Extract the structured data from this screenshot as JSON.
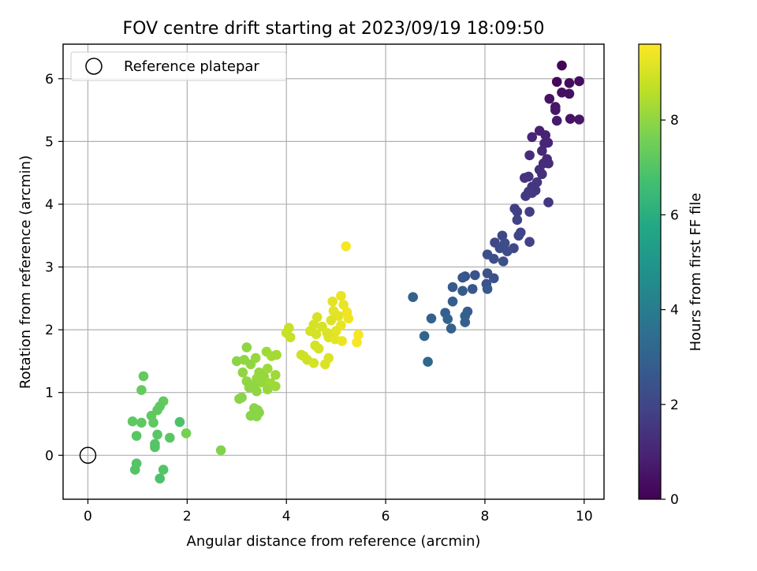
{
  "chart_data": {
    "type": "scatter",
    "title": "FOV centre drift starting at 2023/09/19 18:09:50",
    "xlabel": "Angular distance from reference (arcmin)",
    "ylabel": "Rotation from reference (arcmin)",
    "xlim": [
      -0.5,
      10.4
    ],
    "ylim": [
      -0.7,
      6.55
    ],
    "xticks": [
      0,
      2,
      4,
      6,
      8,
      10
    ],
    "yticks": [
      0,
      1,
      2,
      3,
      4,
      5,
      6
    ],
    "grid": true,
    "legend": {
      "placement": "top-left",
      "entries": [
        "Reference platepar"
      ]
    },
    "reference_point": {
      "x": 0,
      "y": 0
    },
    "colorbar": {
      "label": "Hours from first FF file",
      "colormap": "viridis",
      "range": [
        0,
        9.6
      ],
      "ticks": [
        0,
        2,
        4,
        6,
        8
      ]
    },
    "series": [
      {
        "points": [
          {
            "x": 9.55,
            "y": 6.21,
            "c": 0.1
          },
          {
            "x": 9.45,
            "y": 5.95,
            "c": 0.2
          },
          {
            "x": 9.9,
            "y": 5.96,
            "c": 0.3
          },
          {
            "x": 9.7,
            "y": 5.93,
            "c": 0.3
          },
          {
            "x": 9.55,
            "y": 5.78,
            "c": 0.4
          },
          {
            "x": 9.7,
            "y": 5.76,
            "c": 0.4
          },
          {
            "x": 9.3,
            "y": 5.68,
            "c": 0.5
          },
          {
            "x": 9.42,
            "y": 5.55,
            "c": 0.6
          },
          {
            "x": 9.42,
            "y": 5.5,
            "c": 0.6
          },
          {
            "x": 9.45,
            "y": 5.33,
            "c": 0.7
          },
          {
            "x": 9.72,
            "y": 5.36,
            "c": 0.5
          },
          {
            "x": 9.9,
            "y": 5.35,
            "c": 0.6
          },
          {
            "x": 9.1,
            "y": 5.17,
            "c": 0.9
          },
          {
            "x": 8.95,
            "y": 5.07,
            "c": 1.0
          },
          {
            "x": 9.22,
            "y": 5.1,
            "c": 0.9
          },
          {
            "x": 9.2,
            "y": 4.97,
            "c": 1.0
          },
          {
            "x": 9.27,
            "y": 4.98,
            "c": 1.0
          },
          {
            "x": 9.15,
            "y": 4.85,
            "c": 1.1
          },
          {
            "x": 9.25,
            "y": 4.72,
            "c": 1.1
          },
          {
            "x": 8.9,
            "y": 4.78,
            "c": 1.2
          },
          {
            "x": 9.18,
            "y": 4.65,
            "c": 1.2
          },
          {
            "x": 9.28,
            "y": 4.65,
            "c": 1.2
          },
          {
            "x": 9.1,
            "y": 4.55,
            "c": 1.3
          },
          {
            "x": 9.15,
            "y": 4.48,
            "c": 1.3
          },
          {
            "x": 8.8,
            "y": 4.42,
            "c": 1.4
          },
          {
            "x": 8.88,
            "y": 4.44,
            "c": 1.4
          },
          {
            "x": 9.05,
            "y": 4.35,
            "c": 1.5
          },
          {
            "x": 8.95,
            "y": 4.28,
            "c": 1.5
          },
          {
            "x": 9.02,
            "y": 4.22,
            "c": 1.5
          },
          {
            "x": 8.88,
            "y": 4.2,
            "c": 1.6
          },
          {
            "x": 8.95,
            "y": 4.18,
            "c": 1.6
          },
          {
            "x": 8.82,
            "y": 4.13,
            "c": 1.6
          },
          {
            "x": 9.28,
            "y": 4.03,
            "c": 1.5
          },
          {
            "x": 8.6,
            "y": 3.93,
            "c": 1.8
          },
          {
            "x": 8.65,
            "y": 3.88,
            "c": 1.8
          },
          {
            "x": 8.9,
            "y": 3.88,
            "c": 1.7
          },
          {
            "x": 8.65,
            "y": 3.75,
            "c": 1.9
          },
          {
            "x": 8.72,
            "y": 3.55,
            "c": 2.0
          },
          {
            "x": 8.68,
            "y": 3.5,
            "c": 2.0
          },
          {
            "x": 8.9,
            "y": 3.4,
            "c": 1.9
          },
          {
            "x": 8.2,
            "y": 3.39,
            "c": 2.1
          },
          {
            "x": 8.35,
            "y": 3.5,
            "c": 2.1
          },
          {
            "x": 8.4,
            "y": 3.38,
            "c": 2.2
          },
          {
            "x": 8.3,
            "y": 3.3,
            "c": 2.2
          },
          {
            "x": 8.58,
            "y": 3.3,
            "c": 2.1
          },
          {
            "x": 8.45,
            "y": 3.25,
            "c": 2.2
          },
          {
            "x": 8.05,
            "y": 3.2,
            "c": 2.3
          },
          {
            "x": 8.18,
            "y": 3.13,
            "c": 2.3
          },
          {
            "x": 8.37,
            "y": 3.09,
            "c": 2.3
          },
          {
            "x": 8.05,
            "y": 2.9,
            "c": 2.4
          },
          {
            "x": 7.6,
            "y": 2.85,
            "c": 2.5
          },
          {
            "x": 7.8,
            "y": 2.87,
            "c": 2.5
          },
          {
            "x": 7.55,
            "y": 2.83,
            "c": 2.6
          },
          {
            "x": 8.18,
            "y": 2.82,
            "c": 2.4
          },
          {
            "x": 8.03,
            "y": 2.73,
            "c": 2.5
          },
          {
            "x": 7.35,
            "y": 2.68,
            "c": 2.7
          },
          {
            "x": 7.55,
            "y": 2.62,
            "c": 2.7
          },
          {
            "x": 7.75,
            "y": 2.65,
            "c": 2.6
          },
          {
            "x": 8.05,
            "y": 2.65,
            "c": 2.6
          },
          {
            "x": 6.55,
            "y": 2.52,
            "c": 3.0
          },
          {
            "x": 7.35,
            "y": 2.45,
            "c": 2.8
          },
          {
            "x": 7.65,
            "y": 2.29,
            "c": 2.8
          },
          {
            "x": 7.2,
            "y": 2.27,
            "c": 2.9
          },
          {
            "x": 7.6,
            "y": 2.22,
            "c": 2.9
          },
          {
            "x": 6.92,
            "y": 2.18,
            "c": 3.0
          },
          {
            "x": 7.25,
            "y": 2.17,
            "c": 3.0
          },
          {
            "x": 7.6,
            "y": 2.12,
            "c": 3.0
          },
          {
            "x": 7.32,
            "y": 2.02,
            "c": 3.0
          },
          {
            "x": 6.78,
            "y": 1.9,
            "c": 3.1
          },
          {
            "x": 6.85,
            "y": 1.49,
            "c": 3.2
          },
          {
            "x": 5.2,
            "y": 3.33,
            "c": 9.5
          },
          {
            "x": 5.1,
            "y": 2.54,
            "c": 9.3
          },
          {
            "x": 4.93,
            "y": 2.45,
            "c": 9.2
          },
          {
            "x": 5.15,
            "y": 2.4,
            "c": 9.3
          },
          {
            "x": 4.95,
            "y": 2.3,
            "c": 9.2
          },
          {
            "x": 5.22,
            "y": 2.28,
            "c": 9.4
          },
          {
            "x": 5.05,
            "y": 2.22,
            "c": 9.2
          },
          {
            "x": 5.25,
            "y": 2.18,
            "c": 9.4
          },
          {
            "x": 4.62,
            "y": 2.2,
            "c": 9.0
          },
          {
            "x": 4.9,
            "y": 2.15,
            "c": 9.1
          },
          {
            "x": 4.55,
            "y": 2.08,
            "c": 9.0
          },
          {
            "x": 4.72,
            "y": 2.05,
            "c": 9.0
          },
          {
            "x": 5.1,
            "y": 2.07,
            "c": 9.3
          },
          {
            "x": 4.05,
            "y": 2.03,
            "c": 8.8
          },
          {
            "x": 4.0,
            "y": 1.95,
            "c": 8.8
          },
          {
            "x": 4.48,
            "y": 1.98,
            "c": 9.0
          },
          {
            "x": 4.6,
            "y": 1.93,
            "c": 9.0
          },
          {
            "x": 4.82,
            "y": 1.95,
            "c": 9.1
          },
          {
            "x": 5.0,
            "y": 1.98,
            "c": 9.2
          },
          {
            "x": 5.45,
            "y": 1.92,
            "c": 9.5
          },
          {
            "x": 4.08,
            "y": 1.88,
            "c": 8.8
          },
          {
            "x": 4.85,
            "y": 1.88,
            "c": 9.1
          },
          {
            "x": 4.98,
            "y": 1.85,
            "c": 9.2
          },
          {
            "x": 5.12,
            "y": 1.82,
            "c": 9.3
          },
          {
            "x": 5.42,
            "y": 1.8,
            "c": 9.5
          },
          {
            "x": 4.58,
            "y": 1.75,
            "c": 9.0
          },
          {
            "x": 4.65,
            "y": 1.7,
            "c": 9.0
          },
          {
            "x": 4.3,
            "y": 1.6,
            "c": 8.9
          },
          {
            "x": 4.35,
            "y": 1.58,
            "c": 8.9
          },
          {
            "x": 4.42,
            "y": 1.52,
            "c": 8.9
          },
          {
            "x": 4.85,
            "y": 1.55,
            "c": 9.1
          },
          {
            "x": 4.55,
            "y": 1.47,
            "c": 9.0
          },
          {
            "x": 4.78,
            "y": 1.45,
            "c": 9.1
          },
          {
            "x": 3.2,
            "y": 1.72,
            "c": 8.0
          },
          {
            "x": 3.6,
            "y": 1.65,
            "c": 8.2
          },
          {
            "x": 3.8,
            "y": 1.6,
            "c": 8.3
          },
          {
            "x": 3.7,
            "y": 1.58,
            "c": 8.3
          },
          {
            "x": 3.38,
            "y": 1.55,
            "c": 8.1
          },
          {
            "x": 3.0,
            "y": 1.5,
            "c": 7.9
          },
          {
            "x": 3.15,
            "y": 1.52,
            "c": 8.0
          },
          {
            "x": 3.28,
            "y": 1.45,
            "c": 8.0
          },
          {
            "x": 3.62,
            "y": 1.38,
            "c": 8.2
          },
          {
            "x": 3.45,
            "y": 1.32,
            "c": 8.1
          },
          {
            "x": 3.12,
            "y": 1.32,
            "c": 8.0
          },
          {
            "x": 3.78,
            "y": 1.28,
            "c": 8.2
          },
          {
            "x": 3.55,
            "y": 1.25,
            "c": 8.1
          },
          {
            "x": 3.4,
            "y": 1.22,
            "c": 8.1
          },
          {
            "x": 3.2,
            "y": 1.18,
            "c": 8.0
          },
          {
            "x": 3.5,
            "y": 1.16,
            "c": 8.1
          },
          {
            "x": 3.68,
            "y": 1.15,
            "c": 8.2
          },
          {
            "x": 3.35,
            "y": 1.12,
            "c": 8.0
          },
          {
            "x": 3.25,
            "y": 1.08,
            "c": 8.0
          },
          {
            "x": 3.62,
            "y": 1.05,
            "c": 8.1
          },
          {
            "x": 3.78,
            "y": 1.1,
            "c": 8.2
          },
          {
            "x": 3.4,
            "y": 1.02,
            "c": 8.0
          },
          {
            "x": 3.1,
            "y": 0.92,
            "c": 7.9
          },
          {
            "x": 3.05,
            "y": 0.9,
            "c": 7.9
          },
          {
            "x": 3.35,
            "y": 0.75,
            "c": 7.9
          },
          {
            "x": 3.42,
            "y": 0.72,
            "c": 7.9
          },
          {
            "x": 3.45,
            "y": 0.68,
            "c": 7.9
          },
          {
            "x": 3.28,
            "y": 0.63,
            "c": 7.9
          },
          {
            "x": 3.4,
            "y": 0.62,
            "c": 7.9
          },
          {
            "x": 2.68,
            "y": 0.08,
            "c": 7.8
          },
          {
            "x": 1.12,
            "y": 1.26,
            "c": 7.3
          },
          {
            "x": 1.08,
            "y": 1.04,
            "c": 7.3
          },
          {
            "x": 1.52,
            "y": 0.86,
            "c": 7.3
          },
          {
            "x": 1.45,
            "y": 0.78,
            "c": 7.2
          },
          {
            "x": 1.4,
            "y": 0.72,
            "c": 7.2
          },
          {
            "x": 1.28,
            "y": 0.63,
            "c": 7.2
          },
          {
            "x": 0.9,
            "y": 0.54,
            "c": 7.2
          },
          {
            "x": 1.08,
            "y": 0.52,
            "c": 7.2
          },
          {
            "x": 1.85,
            "y": 0.53,
            "c": 6.9
          },
          {
            "x": 1.32,
            "y": 0.52,
            "c": 7.2
          },
          {
            "x": 1.98,
            "y": 0.35,
            "c": 7.6
          },
          {
            "x": 0.98,
            "y": 0.31,
            "c": 7.1
          },
          {
            "x": 1.4,
            "y": 0.33,
            "c": 7.1
          },
          {
            "x": 1.65,
            "y": 0.28,
            "c": 7.1
          },
          {
            "x": 1.35,
            "y": 0.18,
            "c": 7.0
          },
          {
            "x": 1.35,
            "y": 0.13,
            "c": 7.0
          },
          {
            "x": 0.98,
            "y": -0.13,
            "c": 7.0
          },
          {
            "x": 0.95,
            "y": -0.23,
            "c": 7.0
          },
          {
            "x": 1.52,
            "y": -0.23,
            "c": 7.0
          },
          {
            "x": 1.45,
            "y": -0.37,
            "c": 6.9
          }
        ]
      }
    ]
  }
}
